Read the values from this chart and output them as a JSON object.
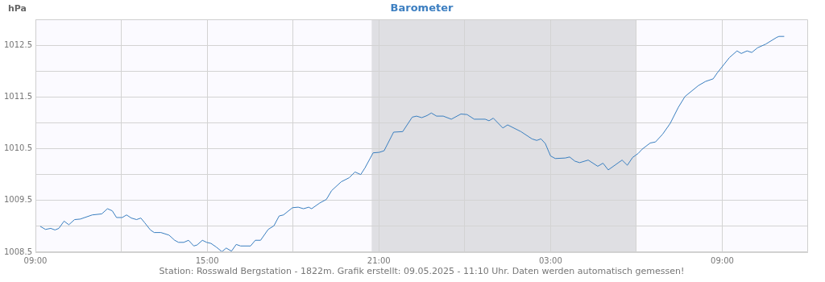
{
  "chart_data": {
    "type": "line",
    "title": "Barometer",
    "ylabel": "hPa",
    "annotations": [
      "Station: Rosswald Bergstation - 1822m. Grafik erstellt: 09.05.2025 - 11:10 Uhr. Daten werden automatisch gemessen!"
    ],
    "xlim": [
      "2025-05-08T09:00",
      "2025-05-09T12:00"
    ],
    "xticks": [
      {
        "value": "2025-05-08T09:00",
        "label": "09:00"
      },
      {
        "value": "2025-05-08T12:00",
        "label": null
      },
      {
        "value": "2025-05-08T15:00",
        "label": "15:00"
      },
      {
        "value": "2025-05-08T18:00",
        "label": null
      },
      {
        "value": "2025-05-08T21:00",
        "label": "21:00"
      },
      {
        "value": "2025-05-09T00:00",
        "label": null
      },
      {
        "value": "2025-05-09T03:00",
        "label": "03:00"
      },
      {
        "value": "2025-05-09T06:00",
        "label": null
      },
      {
        "value": "2025-05-09T09:00",
        "label": "09:00"
      }
    ],
    "ylim": [
      1008.5,
      1013
    ],
    "yticks": [
      1008.5,
      {
        "value": 1009,
        "label": null
      },
      1009.5,
      {
        "value": 1010,
        "label": null
      },
      1010.5,
      {
        "value": 1011,
        "label": null
      },
      1011.5,
      {
        "value": 1012,
        "label": null
      },
      1012.5
    ],
    "grid": true,
    "marker": "none",
    "line_style": "solid",
    "bands": [
      {
        "axis": "x",
        "from": "2025-05-08T20:45",
        "to": "2025-05-09T06:00",
        "color": "#dfdfe3"
      }
    ],
    "series": [
      {
        "color": "#3a7fc0",
        "x": [
          "2025-05-08T09:10",
          "2025-05-08T09:21",
          "2025-05-08T09:32",
          "2025-05-08T09:41",
          "2025-05-08T09:49",
          "2025-05-08T10:00",
          "2025-05-08T10:10",
          "2025-05-08T10:22",
          "2025-05-08T10:34",
          "2025-05-08T10:59",
          "2025-05-08T11:19",
          "2025-05-08T11:31",
          "2025-05-08T11:41",
          "2025-05-08T11:50",
          "2025-05-08T12:02",
          "2025-05-08T12:11",
          "2025-05-08T12:21",
          "2025-05-08T12:32",
          "2025-05-08T12:41",
          "2025-05-08T12:49",
          "2025-05-08T13:01",
          "2025-05-08T13:09",
          "2025-05-08T13:23",
          "2025-05-08T13:40",
          "2025-05-08T13:52",
          "2025-05-08T14:00",
          "2025-05-08T14:11",
          "2025-05-08T14:21",
          "2025-05-08T14:32",
          "2025-05-08T14:39",
          "2025-05-08T14:50",
          "2025-05-08T14:59",
          "2025-05-08T15:08",
          "2025-05-08T15:19",
          "2025-05-08T15:31",
          "2025-05-08T15:40",
          "2025-05-08T15:51",
          "2025-05-08T16:01",
          "2025-05-08T16:10",
          "2025-05-08T16:31",
          "2025-05-08T16:41",
          "2025-05-08T16:52",
          "2025-05-08T17:08",
          "2025-05-08T17:20",
          "2025-05-08T17:31",
          "2025-05-08T17:40",
          "2025-05-08T17:59",
          "2025-05-08T18:11",
          "2025-05-08T18:22",
          "2025-05-08T18:33",
          "2025-05-08T18:39",
          "2025-05-08T18:56",
          "2025-05-08T19:10",
          "2025-05-08T19:21",
          "2025-05-08T19:41",
          "2025-05-08T19:58",
          "2025-05-08T20:10",
          "2025-05-08T20:22",
          "2025-05-08T20:31",
          "2025-05-08T20:48",
          "2025-05-08T21:01",
          "2025-05-08T21:11",
          "2025-05-08T21:31",
          "2025-05-08T21:50",
          "2025-05-08T22:10",
          "2025-05-08T22:19",
          "2025-05-08T22:30",
          "2025-05-08T22:41",
          "2025-05-08T22:50",
          "2025-05-08T23:01",
          "2025-05-08T23:15",
          "2025-05-08T23:32",
          "2025-05-08T23:52",
          "2025-05-09T00:05",
          "2025-05-09T00:20",
          "2025-05-09T00:43",
          "2025-05-09T00:51",
          "2025-05-09T01:00",
          "2025-05-09T01:20",
          "2025-05-09T01:30",
          "2025-05-09T01:58",
          "2025-05-09T02:21",
          "2025-05-09T02:31",
          "2025-05-09T02:40",
          "2025-05-09T02:49",
          "2025-05-09T03:00",
          "2025-05-09T03:10",
          "2025-05-09T03:31",
          "2025-05-09T03:40",
          "2025-05-09T03:51",
          "2025-05-09T04:01",
          "2025-05-09T04:19",
          "2025-05-09T04:39",
          "2025-05-09T04:50",
          "2025-05-09T05:01",
          "2025-05-09T05:30",
          "2025-05-09T05:41",
          "2025-05-09T05:52",
          "2025-05-09T06:04",
          "2025-05-09T06:12",
          "2025-05-09T06:29",
          "2025-05-09T06:40",
          "2025-05-09T06:55",
          "2025-05-09T07:11",
          "2025-05-09T07:28",
          "2025-05-09T07:42",
          "2025-05-09T08:10",
          "2025-05-09T08:25",
          "2025-05-09T08:41",
          "2025-05-09T08:50",
          "2025-05-09T09:15",
          "2025-05-09T09:31",
          "2025-05-09T09:40",
          "2025-05-09T09:52",
          "2025-05-09T10:02",
          "2025-05-09T10:14",
          "2025-05-09T10:31",
          "2025-05-09T10:54",
          "2025-05-09T10:59",
          "2025-05-09T11:10"
        ],
        "values": [
          1009.0,
          1008.94,
          1008.96,
          1008.93,
          1008.96,
          1009.1,
          1009.03,
          1009.13,
          1009.14,
          1009.22,
          1009.24,
          1009.34,
          1009.3,
          1009.17,
          1009.17,
          1009.22,
          1009.16,
          1009.13,
          1009.16,
          1009.07,
          1008.93,
          1008.88,
          1008.88,
          1008.83,
          1008.73,
          1008.69,
          1008.69,
          1008.73,
          1008.62,
          1008.64,
          1008.73,
          1008.69,
          1008.67,
          1008.6,
          1008.51,
          1008.58,
          1008.52,
          1008.65,
          1008.62,
          1008.62,
          1008.73,
          1008.73,
          1008.94,
          1009.01,
          1009.2,
          1009.22,
          1009.36,
          1009.37,
          1009.34,
          1009.37,
          1009.34,
          1009.45,
          1009.52,
          1009.69,
          1009.86,
          1009.94,
          1010.05,
          1010.0,
          1010.13,
          1010.42,
          1010.43,
          1010.46,
          1010.82,
          1010.83,
          1011.11,
          1011.13,
          1011.1,
          1011.14,
          1011.19,
          1011.13,
          1011.13,
          1011.07,
          1011.17,
          1011.16,
          1011.07,
          1011.07,
          1011.04,
          1011.09,
          1010.9,
          1010.96,
          1010.83,
          1010.69,
          1010.66,
          1010.69,
          1010.6,
          1010.36,
          1010.31,
          1010.32,
          1010.34,
          1010.26,
          1010.23,
          1010.28,
          1010.16,
          1010.22,
          1010.09,
          1010.28,
          1010.18,
          1010.33,
          1010.41,
          1010.49,
          1010.61,
          1010.63,
          1010.78,
          1010.99,
          1011.3,
          1011.51,
          1011.72,
          1011.8,
          1011.85,
          1011.97,
          1012.26,
          1012.39,
          1012.34,
          1012.39,
          1012.36,
          1012.45,
          1012.52,
          1012.65,
          1012.67,
          1012.67
        ]
      }
    ]
  }
}
